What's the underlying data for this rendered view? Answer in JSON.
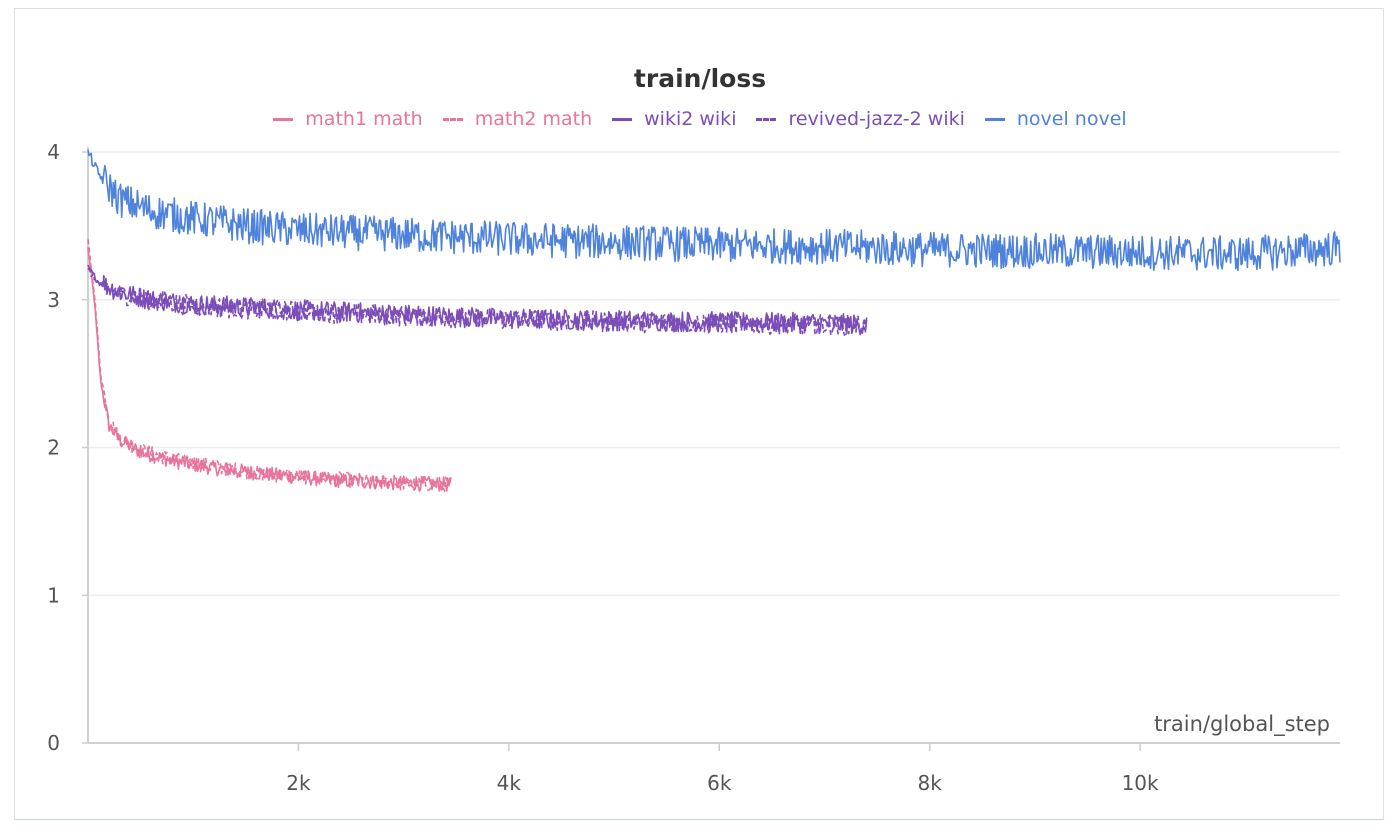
{
  "chart_data": {
    "type": "line",
    "title": "train/loss",
    "xlabel": "train/global_step",
    "ylabel": "",
    "xlim": [
      0,
      11900
    ],
    "ylim": [
      0,
      4
    ],
    "x_ticks": [
      2000,
      4000,
      6000,
      8000,
      10000
    ],
    "x_tick_labels": [
      "2k",
      "4k",
      "6k",
      "8k",
      "10k"
    ],
    "y_ticks": [
      0,
      1,
      2,
      3,
      4
    ],
    "y_tick_labels": [
      "0",
      "1",
      "2",
      "3",
      "4"
    ],
    "grid": true,
    "legend_position": "top",
    "series": [
      {
        "name": "math1 math",
        "color": "#e8739c",
        "dash": false,
        "noise": 0.05,
        "x": [
          0,
          60,
          120,
          200,
          300,
          500,
          800,
          1200,
          1700,
          2300,
          2900,
          3450
        ],
        "y": [
          3.35,
          3.0,
          2.45,
          2.15,
          2.05,
          1.97,
          1.91,
          1.86,
          1.82,
          1.78,
          1.76,
          1.75
        ]
      },
      {
        "name": "math2 math",
        "color": "#e8739c",
        "dash": true,
        "noise": 0.05,
        "x": [
          0,
          60,
          120,
          200,
          300,
          500,
          800,
          1200,
          1700,
          2300,
          2900,
          3450
        ],
        "y": [
          3.4,
          3.05,
          2.5,
          2.18,
          2.07,
          1.98,
          1.92,
          1.87,
          1.82,
          1.79,
          1.76,
          1.75
        ]
      },
      {
        "name": "wiki2 wiki",
        "color": "#7c4db8",
        "dash": false,
        "noise": 0.07,
        "x": [
          0,
          100,
          300,
          600,
          1000,
          2000,
          3000,
          4000,
          5000,
          6000,
          7000,
          7400
        ],
        "y": [
          3.22,
          3.12,
          3.05,
          3.0,
          2.97,
          2.93,
          2.9,
          2.87,
          2.86,
          2.85,
          2.84,
          2.83
        ]
      },
      {
        "name": "revived-jazz-2 wiki",
        "color": "#7c4db8",
        "dash": true,
        "noise": 0.07,
        "x": [
          0,
          100,
          300,
          600,
          1000,
          2000,
          3000,
          4000,
          5000,
          6000,
          7000,
          7400
        ],
        "y": [
          3.2,
          3.11,
          3.04,
          3.0,
          2.96,
          2.92,
          2.89,
          2.87,
          2.85,
          2.84,
          2.83,
          2.83
        ]
      },
      {
        "name": "novel novel",
        "color": "#4e82dc",
        "dash": false,
        "noise": 0.12,
        "x": [
          0,
          100,
          300,
          600,
          1000,
          1500,
          2000,
          3000,
          4000,
          5000,
          6000,
          7000,
          8000,
          9000,
          10000,
          11000,
          11900
        ],
        "y": [
          4.0,
          3.85,
          3.68,
          3.6,
          3.55,
          3.5,
          3.47,
          3.44,
          3.41,
          3.39,
          3.37,
          3.36,
          3.34,
          3.33,
          3.32,
          3.31,
          3.35
        ]
      }
    ]
  }
}
